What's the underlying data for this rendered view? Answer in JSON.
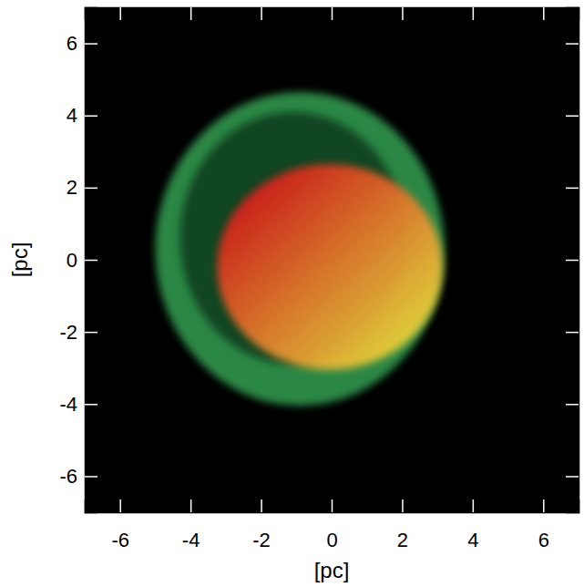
{
  "chart_data": {
    "type": "image",
    "xlabel": "[pc]",
    "ylabel": "[pc]",
    "xlim": [
      -7,
      7
    ],
    "ylim": [
      -7,
      7
    ],
    "xticks": [
      -6,
      -4,
      -2,
      0,
      2,
      4,
      6
    ],
    "yticks": [
      -6,
      -4,
      -2,
      0,
      2,
      4,
      6
    ],
    "tick_labels": true,
    "shapes": [
      {
        "cx": -0.9,
        "cy": 0.3,
        "rx": 4.1,
        "ry": 4.35,
        "color": "#2f8f48"
      },
      {
        "cx": -1.1,
        "cy": 0.6,
        "rx": 3.2,
        "ry": 3.5,
        "color": "#0f3a1b"
      },
      {
        "cx": -0.05,
        "cy": -0.2,
        "rx": 3.2,
        "ry": 2.85,
        "color": "#e8cf3a"
      }
    ]
  }
}
